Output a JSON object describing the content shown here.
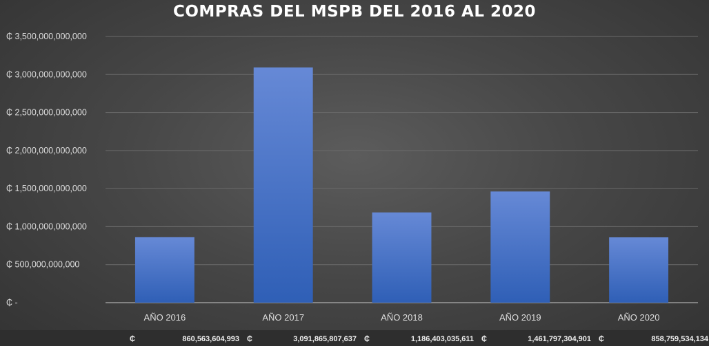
{
  "chart_data": {
    "type": "bar",
    "title": "COMPRAS DEL MSPB DEL 2016 AL 2020",
    "categories": [
      "AÑO 2016",
      "AÑO 2017",
      "AÑO 2018",
      "AÑO 2019",
      "AÑO 2020"
    ],
    "values": [
      860563604993,
      3091865807637,
      1186403035611,
      1461797304901,
      858759534134
    ],
    "value_labels": [
      "860,563,604,993",
      "3,091,865,807,637",
      "1,186,403,035,611",
      "1,461,797,304,901",
      "858,759,534,134"
    ],
    "currency_symbol": "₵",
    "ylim": [
      0,
      3500000000000
    ],
    "y_ticks": [
      "₵ -",
      "₵ 500,000,000,000",
      "₵ 1,000,000,000,000",
      "₵ 1,500,000,000,000",
      "₵ 2,000,000,000,000",
      "₵ 2,500,000,000,000",
      "₵ 3,000,000,000,000",
      "₵ 3,500,000,000,000"
    ],
    "y_tick_values": [
      0,
      500000000000,
      1000000000000,
      1500000000000,
      2000000000000,
      2500000000000,
      3000000000000,
      3500000000000
    ],
    "grid": true,
    "bar_color": "#4a72cc",
    "xlabel": "",
    "ylabel": ""
  }
}
